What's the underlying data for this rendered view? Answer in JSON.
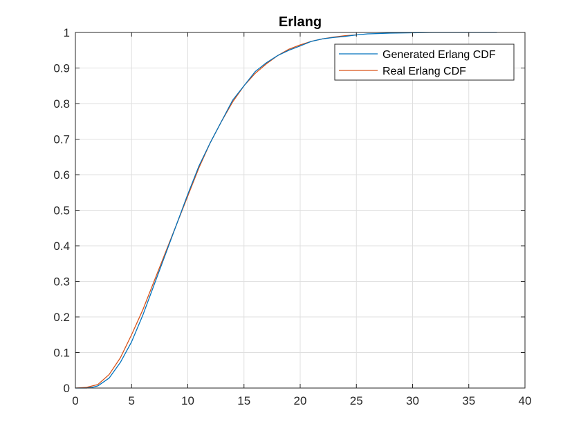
{
  "chart_data": {
    "type": "line",
    "title": "Erlang",
    "xlabel": "",
    "ylabel": "",
    "xlim": [
      0,
      40
    ],
    "ylim": [
      0,
      1
    ],
    "xticks": [
      0,
      5,
      10,
      15,
      20,
      25,
      30,
      35,
      40
    ],
    "yticks": [
      0,
      0.1,
      0.2,
      0.3,
      0.4,
      0.5,
      0.6,
      0.7,
      0.8,
      0.9,
      1
    ],
    "grid": true,
    "legend_position": "top-right",
    "series": [
      {
        "name": "Generated Erlang CDF",
        "color": "#0072BD",
        "x": [
          0,
          1,
          1.5,
          2,
          3,
          4,
          5,
          6,
          7,
          8,
          9,
          10,
          11,
          12,
          13,
          14,
          15,
          16,
          17,
          18,
          19,
          20,
          21,
          22,
          23,
          24,
          25,
          26,
          28,
          30,
          32,
          35,
          37.5
        ],
        "y": [
          0,
          0,
          0.002,
          0.006,
          0.028,
          0.072,
          0.13,
          0.205,
          0.29,
          0.375,
          0.46,
          0.545,
          0.625,
          0.69,
          0.75,
          0.81,
          0.85,
          0.89,
          0.915,
          0.935,
          0.95,
          0.962,
          0.975,
          0.982,
          0.986,
          0.989,
          0.993,
          0.996,
          0.998,
          0.999,
          1.0,
          1.0,
          1.0
        ]
      },
      {
        "name": "Real Erlang CDF",
        "color": "#D95319",
        "x": [
          0,
          1,
          2,
          3,
          4,
          5,
          6,
          7,
          8,
          9,
          10,
          11,
          12,
          13,
          14,
          15,
          16,
          17,
          18,
          19,
          20,
          21,
          22,
          23,
          24,
          25
        ],
        "y": [
          0,
          0.002,
          0.01,
          0.038,
          0.085,
          0.15,
          0.22,
          0.3,
          0.38,
          0.46,
          0.54,
          0.62,
          0.69,
          0.75,
          0.805,
          0.85,
          0.885,
          0.912,
          0.935,
          0.953,
          0.965,
          0.975,
          0.982,
          0.987,
          0.991,
          0.993
        ]
      }
    ]
  }
}
